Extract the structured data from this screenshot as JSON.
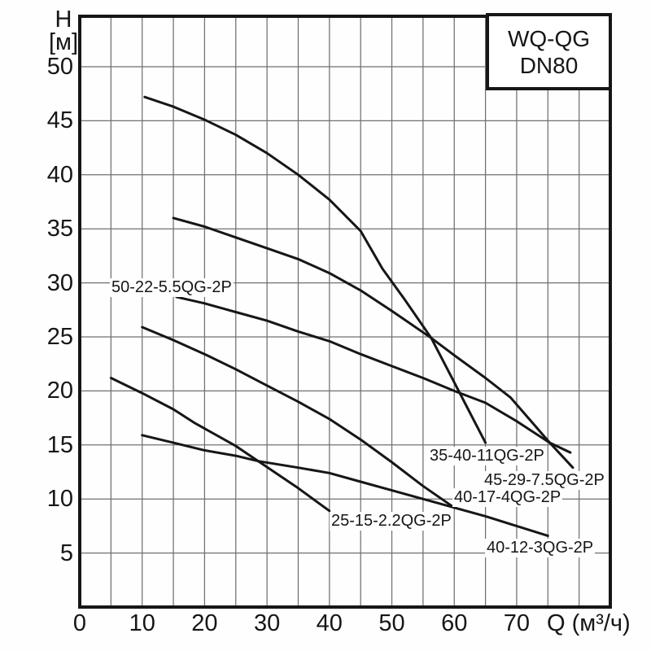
{
  "title_box": {
    "line1": "WQ-QG",
    "line2": "DN80"
  },
  "axes": {
    "y_label_line1": "H",
    "y_label_line2": "[м]",
    "x_unit_label": "Q (м³/ч)"
  },
  "colors": {
    "curve": "#161616",
    "grid": "#707070",
    "text": "#161616",
    "background": "#ffffff"
  },
  "chart_data": {
    "type": "line",
    "title": "WQ-QG DN80",
    "xlabel": "Q (м³/ч)",
    "ylabel": "H [м]",
    "xlim": [
      0,
      85
    ],
    "ylim": [
      0,
      54.7
    ],
    "grid": true,
    "grid_step": 5,
    "x_ticks": [
      0,
      10,
      20,
      30,
      40,
      50,
      60,
      70
    ],
    "y_ticks": [
      5,
      10,
      15,
      20,
      25,
      30,
      35,
      40,
      45,
      50
    ],
    "legend_position": "none",
    "series": [
      {
        "name": "35-40-11QG-2P",
        "label_anchor": [
          55.8,
          14.83
        ],
        "points": [
          [
            10.4,
            47.2
          ],
          [
            15,
            46.3
          ],
          [
            20,
            45.1
          ],
          [
            25,
            43.7
          ],
          [
            30,
            42.0
          ],
          [
            35,
            40.0
          ],
          [
            40,
            37.7
          ],
          [
            45,
            34.8
          ],
          [
            48.5,
            31.3
          ],
          [
            52,
            28.5
          ],
          [
            56.3,
            24.9
          ],
          [
            60,
            20.8
          ],
          [
            62.5,
            18.0
          ],
          [
            65,
            15.2
          ]
        ]
      },
      {
        "name": "45-29-7.5QG-2P",
        "label_anchor": [
          64.53,
          12.58
        ],
        "points": [
          [
            15,
            36.0
          ],
          [
            20,
            35.2
          ],
          [
            25,
            34.2
          ],
          [
            30,
            33.2
          ],
          [
            35,
            32.2
          ],
          [
            40,
            30.9
          ],
          [
            45,
            29.3
          ],
          [
            50,
            27.4
          ],
          [
            56.3,
            24.9
          ],
          [
            60,
            23.3
          ],
          [
            65,
            21.2
          ],
          [
            69,
            19.4
          ],
          [
            72,
            17.4
          ],
          [
            75.3,
            15.2
          ],
          [
            79,
            12.9
          ]
        ]
      },
      {
        "name": "50-22-5.5QG-2P",
        "label_anchor": [
          4.82,
          30.42
        ],
        "points": [
          [
            15.5,
            28.7
          ],
          [
            20,
            28.1
          ],
          [
            25,
            27.3
          ],
          [
            30,
            26.5
          ],
          [
            35,
            25.5
          ],
          [
            40,
            24.6
          ],
          [
            45,
            23.4
          ],
          [
            50,
            22.3
          ],
          [
            55,
            21.2
          ],
          [
            60,
            20.0
          ],
          [
            65,
            18.9
          ],
          [
            70,
            17.2
          ],
          [
            75.3,
            15.2
          ],
          [
            78.6,
            14.3
          ]
        ]
      },
      {
        "name": "40-17-4QG-2P",
        "label_anchor": [
          59.71,
          10.99
        ],
        "points": [
          [
            10,
            25.9
          ],
          [
            15,
            24.7
          ],
          [
            20,
            23.4
          ],
          [
            25,
            22.0
          ],
          [
            30,
            20.5
          ],
          [
            35,
            19.0
          ],
          [
            40,
            17.4
          ],
          [
            45,
            15.5
          ],
          [
            50,
            13.4
          ],
          [
            55,
            11.2
          ],
          [
            60,
            9.2
          ]
        ]
      },
      {
        "name": "25-15-2.2QG-2P",
        "label_anchor": [
          40.02,
          8.81
        ],
        "points": [
          [
            5,
            21.2
          ],
          [
            10,
            19.8
          ],
          [
            15,
            18.3
          ],
          [
            18.5,
            17.0
          ],
          [
            25,
            14.9
          ],
          [
            28.6,
            13.5
          ],
          [
            35,
            11.0
          ],
          [
            40,
            8.9
          ]
        ]
      },
      {
        "name": "40-12-3QG-2P",
        "label_anchor": [
          64.92,
          6.33
        ],
        "points": [
          [
            10,
            15.9
          ],
          [
            15,
            15.2
          ],
          [
            20,
            14.5
          ],
          [
            25,
            14.0
          ],
          [
            28.6,
            13.5
          ],
          [
            35,
            12.9
          ],
          [
            40,
            12.4
          ],
          [
            45,
            11.6
          ],
          [
            50,
            10.8
          ],
          [
            55,
            10.0
          ],
          [
            60,
            9.2
          ],
          [
            65,
            8.4
          ],
          [
            70,
            7.5
          ],
          [
            75,
            6.6
          ]
        ]
      }
    ]
  }
}
